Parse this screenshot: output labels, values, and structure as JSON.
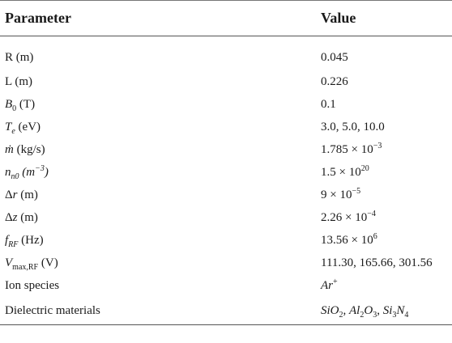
{
  "table": {
    "headers": {
      "parameter": "Parameter",
      "value": "Value"
    },
    "rows": [
      {
        "p_text": "R (m)",
        "value": "0.045"
      },
      {
        "p_text": "L (m)",
        "value": "0.226"
      },
      {
        "p_sym": "B",
        "p_sub": "0",
        "p_unit": " (T)",
        "value": "0.1"
      },
      {
        "p_sym": "T",
        "p_sub": "e",
        "p_unit": " (eV)",
        "value": "3.0, 5.0, 10.0"
      },
      {
        "p_sym": "ṁ",
        "p_unit": " (kg/s)",
        "v_base": "1.785 × 10",
        "v_sup": "−3"
      },
      {
        "p_sym": "n",
        "p_sub": "n0",
        "p_unit_i": " (m",
        "p_unit_sup": "−3",
        "p_unit_close": ")",
        "v_base": "1.5 × 10",
        "v_sup": "20"
      },
      {
        "p_pre": "Δ",
        "p_sym": "r",
        "p_unit": " (m)",
        "v_base": "9 × 10",
        "v_sup": "−5"
      },
      {
        "p_pre": "Δ",
        "p_sym": "z",
        "p_unit": " (m)",
        "v_base": "2.26 × 10",
        "v_sup": "−4"
      },
      {
        "p_sym": "f",
        "p_sub": "RF",
        "p_unit": " (Hz)",
        "v_base": "13.56 × 10",
        "v_sup": "6"
      },
      {
        "p_sym": "V",
        "p_sub": "max,RF",
        "p_unit": " (V)",
        "value": "111.30, 165.66, 301.56"
      },
      {
        "p_text": "Ion species",
        "v_i": "Ar",
        "v_sup": "+"
      },
      {
        "p_text": "Dielectric materials",
        "v1": "SiO",
        "v1s": "2",
        "sep1": ", ",
        "v2": "Al",
        "v2s": "2",
        "v2b": "O",
        "v2bs": "3",
        "sep2": ", ",
        "v3": "Si",
        "v3s": "3",
        "v3b": "N",
        "v3bs": "4"
      }
    ]
  }
}
